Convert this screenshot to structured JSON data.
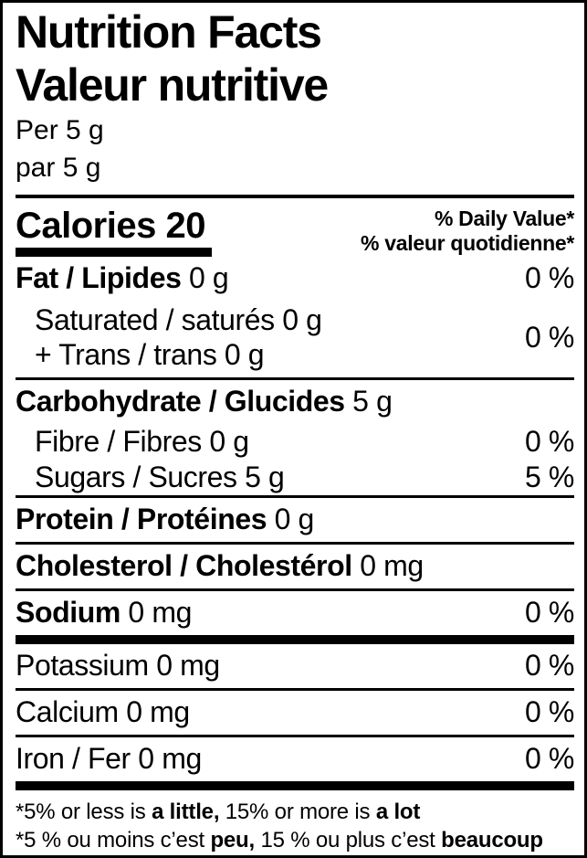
{
  "header": {
    "title_en": "Nutrition Facts",
    "title_fr": "Valeur nutritive",
    "serving_en": "Per 5 g",
    "serving_fr": "par 5 g"
  },
  "calories": {
    "label": "Calories",
    "value": "20",
    "daily_value_en": "% Daily Value*",
    "daily_value_fr": "% valeur quotidienne*"
  },
  "colors": {
    "ink": "#000000",
    "background": "#ffffff"
  },
  "nutrients": [
    {
      "key": "fat",
      "bold": "Fat / Lipides",
      "rest": " 0 g",
      "percent": "0 %",
      "indent": false,
      "top": "none",
      "style": "main"
    },
    {
      "key": "saturated-trans",
      "lines": [
        "Saturated / saturés 0 g",
        "+ Trans / trans 0 g"
      ],
      "percent": "0 %",
      "indent": true,
      "top": "none",
      "style": "group"
    },
    {
      "key": "carbohydrate",
      "bold": "Carbohydrate / Glucides",
      "rest": " 5 g",
      "percent": "",
      "indent": false,
      "top": "thin",
      "style": "main"
    },
    {
      "key": "fibre",
      "plain": "Fibre / Fibres 0 g",
      "percent": "0 %",
      "indent": true,
      "top": "none",
      "style": "sub"
    },
    {
      "key": "sugars",
      "plain": "Sugars / Sucres 5 g",
      "percent": "5 %",
      "indent": true,
      "top": "none",
      "style": "sub"
    },
    {
      "key": "protein",
      "bold": "Protein / Protéines",
      "rest": " 0 g",
      "percent": "",
      "indent": false,
      "top": "thin",
      "style": "main"
    },
    {
      "key": "cholesterol",
      "bold": "Cholesterol / Cholestérol",
      "rest": " 0 mg",
      "percent": "",
      "indent": false,
      "top": "thin",
      "style": "main"
    },
    {
      "key": "sodium",
      "bold": "Sodium",
      "rest": " 0 mg",
      "percent": "0 %",
      "indent": false,
      "top": "thin",
      "style": "main"
    },
    {
      "key": "potassium",
      "plain": "Potassium 0 mg",
      "percent": "0 %",
      "indent": false,
      "top": "thick",
      "style": "main"
    },
    {
      "key": "calcium",
      "plain": "Calcium 0 mg",
      "percent": "0 %",
      "indent": false,
      "top": "thin",
      "style": "main"
    },
    {
      "key": "iron",
      "plain": "Iron / Fer 0 mg",
      "percent": "0 %",
      "indent": false,
      "top": "thin",
      "style": "main"
    }
  ],
  "footnotes": [
    {
      "key": "en",
      "parts": [
        {
          "t": "*5% or less is ",
          "b": false
        },
        {
          "t": "a little,",
          "b": true
        },
        {
          "t": " 15% or more is ",
          "b": false
        },
        {
          "t": "a lot",
          "b": true
        }
      ]
    },
    {
      "key": "fr",
      "parts": [
        {
          "t": "*5 % ou moins c’est ",
          "b": false
        },
        {
          "t": "peu,",
          "b": true
        },
        {
          "t": " 15 % ou plus c’est ",
          "b": false
        },
        {
          "t": "beaucoup",
          "b": true
        }
      ]
    }
  ]
}
